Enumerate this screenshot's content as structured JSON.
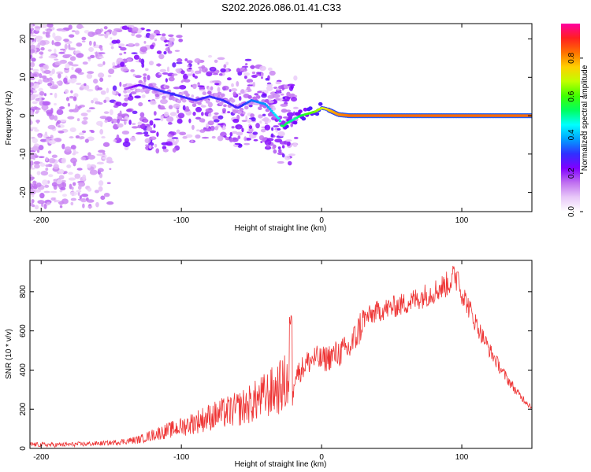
{
  "chart_data": [
    {
      "type": "heatmap",
      "title": "S202.2026.086.01.41.C33",
      "xlabel": "Height of straight line (km)",
      "ylabel": "Frequency (Hz)",
      "xlim": [
        -208,
        150
      ],
      "ylim": [
        -25,
        24
      ],
      "xticks": [
        -200,
        -100,
        0,
        100
      ],
      "yticks": [
        -20,
        -10,
        0,
        10,
        20
      ],
      "xtick_labels": [
        "-200",
        "-100",
        "0",
        "100"
      ],
      "ytick_labels": [
        "-20",
        "-10",
        "0",
        "10",
        "20"
      ],
      "colorbar": {
        "label": "Normalized spectral amplitude",
        "range": [
          0,
          0.98
        ],
        "ticks": [
          0,
          0.2,
          0.4,
          0.6,
          0.8
        ],
        "tick_labels": [
          "0.0",
          "0.2",
          "0.4",
          "0.6",
          "0.8"
        ],
        "colors": [
          "#ffffff",
          "#e8c8f8",
          "#c070f0",
          "#8000ff",
          "#3030ff",
          "#00a0ff",
          "#00ffff",
          "#00ff60",
          "#40ff00",
          "#c0ff00",
          "#ffd000",
          "#ff7000",
          "#ff2020",
          "#ff00a0"
        ]
      },
      "ridge": {
        "description": "dominant frequency vs height",
        "x": [
          -140,
          -130,
          -120,
          -110,
          -100,
          -90,
          -80,
          -70,
          -60,
          -50,
          -40,
          -35,
          -30,
          -28,
          -25,
          -20,
          -15,
          -10,
          -5,
          0,
          3,
          8,
          12,
          20,
          40,
          80,
          120,
          150
        ],
        "frequency": [
          7,
          8,
          7,
          6,
          5,
          4,
          5,
          4,
          2,
          4,
          3,
          1,
          -1,
          -3,
          -2,
          -1,
          0,
          0.5,
          1,
          2,
          1.8,
          1,
          0.3,
          0,
          0,
          0,
          0,
          0
        ],
        "amplitude": [
          0.18,
          0.25,
          0.3,
          0.3,
          0.3,
          0.28,
          0.3,
          0.3,
          0.28,
          0.35,
          0.38,
          0.42,
          0.48,
          0.55,
          0.55,
          0.5,
          0.55,
          0.6,
          0.65,
          0.7,
          0.75,
          0.8,
          0.82,
          0.85,
          0.85,
          0.85,
          0.85,
          0.85
        ]
      }
    },
    {
      "type": "line",
      "xlabel": "Height of straight line (km)",
      "ylabel": "SNR (10 * v/v)",
      "xlim": [
        -208,
        150
      ],
      "ylim": [
        0,
        960
      ],
      "xticks": [
        -200,
        -100,
        0,
        100
      ],
      "yticks": [
        0,
        200,
        400,
        600,
        800
      ],
      "xtick_labels": [
        "-200",
        "-100",
        "0",
        "100"
      ],
      "ytick_labels": [
        "0",
        "200",
        "400",
        "600",
        "800"
      ],
      "series": [
        {
          "name": "SNR",
          "color": "#ee3333",
          "x": [
            -208,
            -190,
            -170,
            -150,
            -130,
            -120,
            -100,
            -80,
            -60,
            -50,
            -40,
            -30,
            -25,
            -20,
            -18,
            -15,
            -10,
            -5,
            0,
            10,
            20,
            25,
            30,
            40,
            50,
            60,
            70,
            80,
            90,
            95,
            100,
            110,
            120,
            130,
            140,
            150
          ],
          "y": [
            20,
            18,
            22,
            28,
            45,
            70,
            110,
            160,
            200,
            230,
            270,
            310,
            340,
            360,
            380,
            400,
            440,
            460,
            450,
            480,
            510,
            580,
            660,
            700,
            720,
            740,
            770,
            800,
            840,
            880,
            800,
            640,
            500,
            380,
            280,
            210
          ],
          "spike": [
            -22,
            690
          ],
          "peak": [
            97,
            900
          ]
        }
      ]
    }
  ]
}
